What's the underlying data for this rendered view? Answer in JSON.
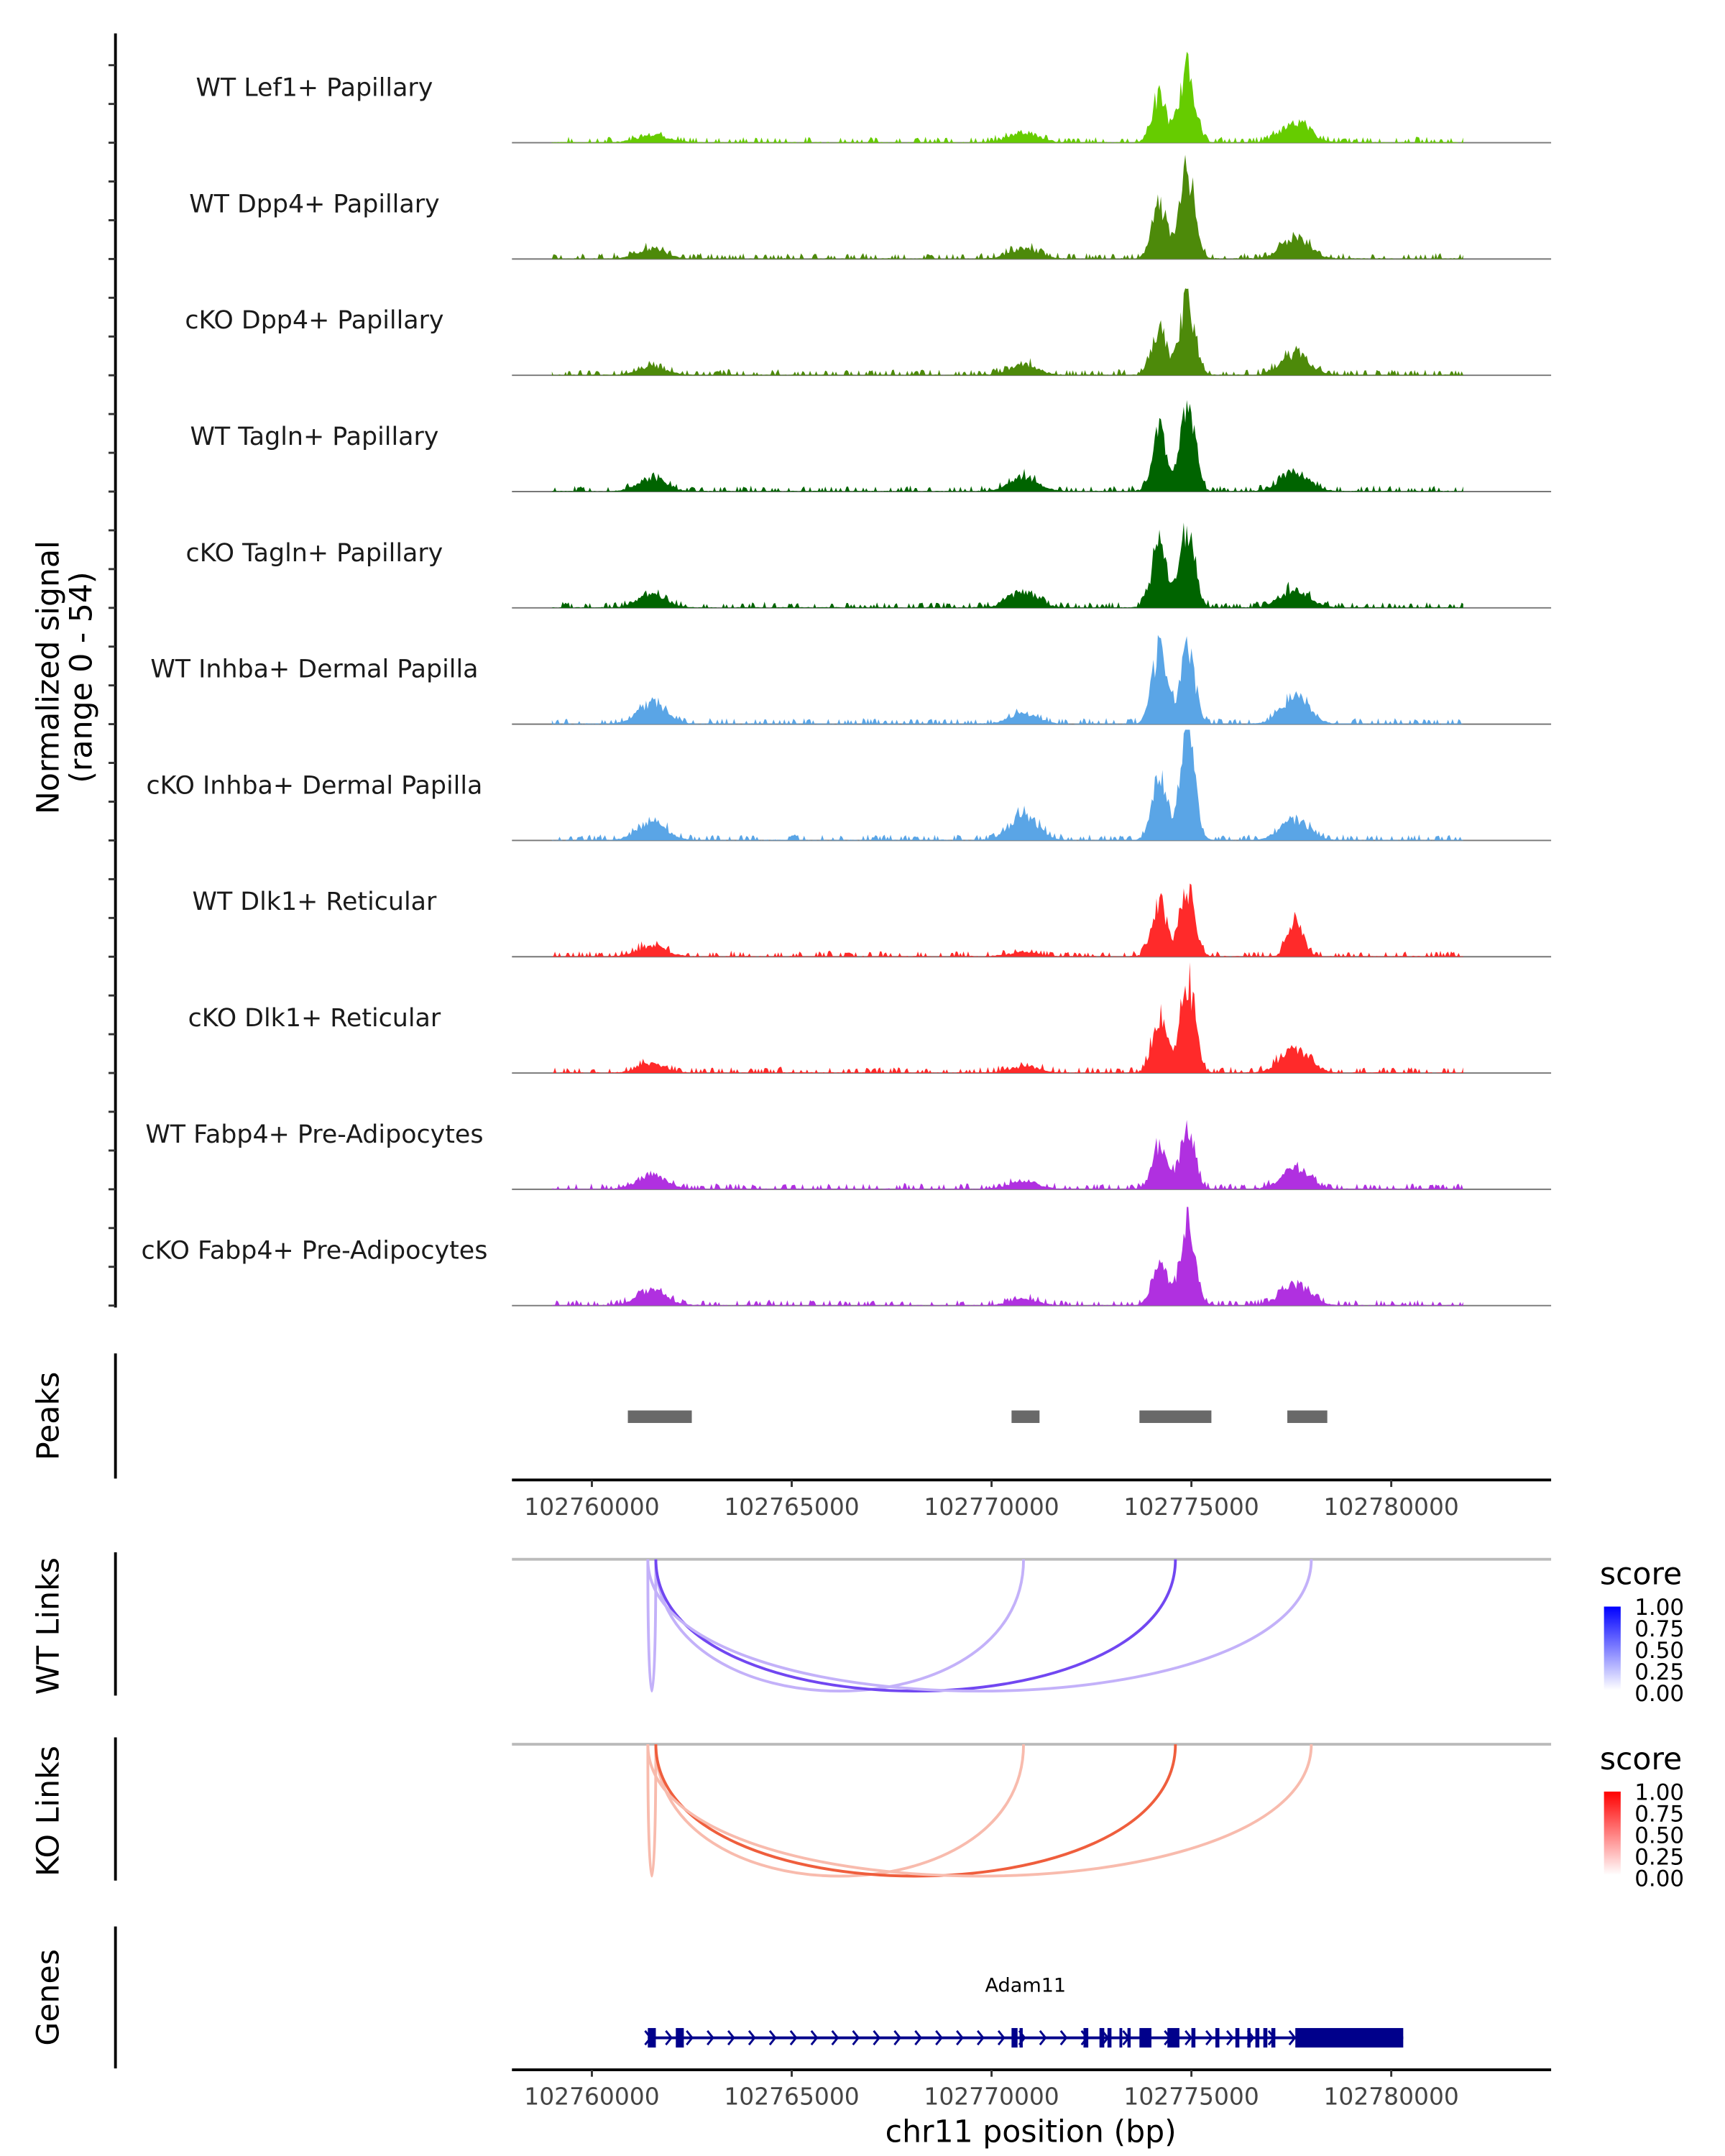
{
  "chart_data": {
    "type": "area",
    "title": "",
    "region": {
      "chrom": "chr11",
      "start": 102758000,
      "end": 102784000
    },
    "ylabel_line1": "Normalized signal",
    "ylabel_line2": "(range 0 - 54)",
    "yrange": [
      0,
      54
    ],
    "xlabel": "chr11 position (bp)",
    "xticks": [
      102760000,
      102765000,
      102770000,
      102775000,
      102780000
    ],
    "xtick_labels": [
      "102760000",
      "102765000",
      "102770000",
      "102775000",
      "102780000"
    ],
    "tracks": [
      {
        "name": "WT Lef1+ Papillary",
        "color": "#66cc00",
        "peaks": [
          [
            102761500,
            4
          ],
          [
            102770800,
            5
          ],
          [
            102774200,
            22
          ],
          [
            102774900,
            36
          ],
          [
            102777600,
            10
          ]
        ]
      },
      {
        "name": "WT Dpp4+ Papillary",
        "color": "#4d8a0a",
        "peaks": [
          [
            102761500,
            5
          ],
          [
            102770800,
            5
          ],
          [
            102774200,
            26
          ],
          [
            102774900,
            42
          ],
          [
            102777600,
            10
          ]
        ]
      },
      {
        "name": "cKO Dpp4+ Papillary",
        "color": "#4d8a0a",
        "peaks": [
          [
            102761500,
            4
          ],
          [
            102770800,
            5
          ],
          [
            102774200,
            22
          ],
          [
            102774900,
            36
          ],
          [
            102777600,
            10
          ]
        ]
      },
      {
        "name": "WT Tagln+ Papillary",
        "color": "#006400",
        "peaks": [
          [
            102761500,
            6
          ],
          [
            102770800,
            7
          ],
          [
            102774200,
            28
          ],
          [
            102774900,
            42
          ],
          [
            102777600,
            9
          ]
        ]
      },
      {
        "name": "cKO Tagln+ Papillary",
        "color": "#006400",
        "peaks": [
          [
            102761500,
            6
          ],
          [
            102770800,
            8
          ],
          [
            102774200,
            32
          ],
          [
            102774900,
            40
          ],
          [
            102777600,
            9
          ]
        ]
      },
      {
        "name": "WT Inhba+ Dermal Papilla",
        "color": "#5aa5e6",
        "peaks": [
          [
            102761500,
            10
          ],
          [
            102770800,
            5
          ],
          [
            102774200,
            36
          ],
          [
            102774900,
            36
          ],
          [
            102777600,
            12
          ]
        ]
      },
      {
        "name": "cKO Inhba+ Dermal Papilla",
        "color": "#5aa5e6",
        "peaks": [
          [
            102761500,
            9
          ],
          [
            102770800,
            12
          ],
          [
            102774200,
            30
          ],
          [
            102774900,
            50
          ],
          [
            102777600,
            10
          ]
        ]
      },
      {
        "name": "WT Dlk1+ Reticular",
        "color": "#ff2a2a",
        "peaks": [
          [
            102761500,
            5
          ],
          [
            102770800,
            2
          ],
          [
            102774200,
            28
          ],
          [
            102774900,
            32
          ],
          [
            102777600,
            18
          ]
        ]
      },
      {
        "name": "cKO Dlk1+ Reticular",
        "color": "#ff2a2a",
        "peaks": [
          [
            102761500,
            4
          ],
          [
            102770800,
            3
          ],
          [
            102774200,
            26
          ],
          [
            102774900,
            46
          ],
          [
            102777600,
            12
          ]
        ]
      },
      {
        "name": "WT Fabp4+ Pre-Adipocytes",
        "color": "#b030e0",
        "peaks": [
          [
            102761500,
            7
          ],
          [
            102770800,
            4
          ],
          [
            102774200,
            20
          ],
          [
            102774900,
            28
          ],
          [
            102777600,
            10
          ]
        ]
      },
      {
        "name": "cKO Fabp4+ Pre-Adipocytes",
        "color": "#b030e0",
        "peaks": [
          [
            102761500,
            8
          ],
          [
            102770800,
            3
          ],
          [
            102774200,
            22
          ],
          [
            102774900,
            42
          ],
          [
            102777600,
            10
          ]
        ]
      }
    ],
    "peaks_track": {
      "label": "Peaks",
      "color": "#696969",
      "regions": [
        [
          102760900,
          102762500
        ],
        [
          102770500,
          102771200
        ],
        [
          102773700,
          102775500
        ],
        [
          102777400,
          102778400
        ]
      ]
    },
    "links_tracks": [
      {
        "label": "WT Links",
        "legend_title": "score",
        "legend_ticks": [
          "1.00",
          "0.75",
          "0.50",
          "0.25",
          "0.00"
        ],
        "color_high": "#0000ff",
        "color_low": "#ffffff",
        "links": [
          {
            "start": 102761400,
            "end": 102761600,
            "score": 0.35
          },
          {
            "start": 102761600,
            "end": 102770800,
            "score": 0.3
          },
          {
            "start": 102761600,
            "end": 102774600,
            "score": 0.75
          },
          {
            "start": 102761400,
            "end": 102778000,
            "score": 0.3
          }
        ]
      },
      {
        "label": "KO Links",
        "legend_title": "score",
        "legend_ticks": [
          "1.00",
          "0.75",
          "0.50",
          "0.25",
          "0.00"
        ],
        "color_high": "#ff0000",
        "color_low": "#ffffff",
        "links": [
          {
            "start": 102761400,
            "end": 102761600,
            "score": 0.35
          },
          {
            "start": 102761600,
            "end": 102770800,
            "score": 0.3
          },
          {
            "start": 102761600,
            "end": 102774600,
            "score": 0.75
          },
          {
            "start": 102761400,
            "end": 102778000,
            "score": 0.3
          }
        ]
      }
    ],
    "genes_track": {
      "label": "Genes",
      "color": "#00008b",
      "gene": {
        "name": "Adam11",
        "start": 102761400,
        "end": 102780300,
        "strand": "+",
        "exons": [
          [
            102761400,
            102761600
          ],
          [
            102762100,
            102762300
          ],
          [
            102770500,
            102770650
          ],
          [
            102770700,
            102770780
          ],
          [
            102772300,
            102772420
          ],
          [
            102772700,
            102772820
          ],
          [
            102772900,
            102773000
          ],
          [
            102773200,
            102773260
          ],
          [
            102773400,
            102773480
          ],
          [
            102773700,
            102774000
          ],
          [
            102774400,
            102774700
          ],
          [
            102775000,
            102775100
          ],
          [
            102775600,
            102775700
          ],
          [
            102776100,
            102776200
          ],
          [
            102776400,
            102776480
          ],
          [
            102776600,
            102776700
          ],
          [
            102776800,
            102776900
          ],
          [
            102777000,
            102777100
          ],
          [
            102777600,
            102780300
          ]
        ]
      }
    }
  }
}
